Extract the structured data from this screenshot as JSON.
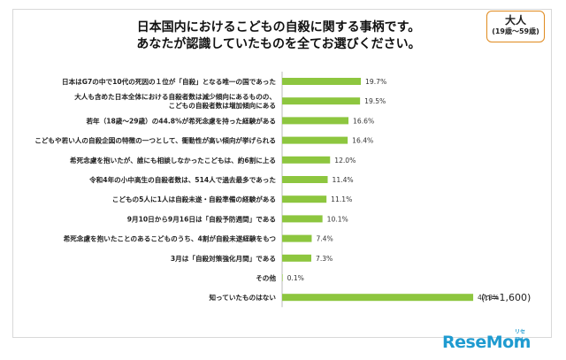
{
  "title": {
    "line1": "日本国内におけるこどもの自殺に関する事柄です。",
    "line2": "あなたが認識していたものを全てお選びください。"
  },
  "badge": {
    "label": "大人",
    "sub": "(19歳～59歳)"
  },
  "note": "(n=1,600)",
  "logo": {
    "text": "ReseMom",
    "small": "リセマム"
  },
  "colors": {
    "bar": "#8dc63f",
    "badge_border": "#e08a1e",
    "logo": "#1f9bd0"
  },
  "chart_data": {
    "type": "bar",
    "orientation": "horizontal",
    "unit": "%",
    "categories": [
      [
        "日本はG7の中で10代の死因の１位が「自殺」となる唯一の国であった"
      ],
      [
        "大人も含めた日本全体における自殺者数は減少傾向にあるものの、",
        "こどもの自殺者数は増加傾向にある"
      ],
      [
        "若年（18歳～29歳）の44.8%が希死念慮を持った経験がある"
      ],
      [
        "こどもや若い人の自殺企図の特徴の一つとして、衝動性が高い傾向が挙げられる"
      ],
      [
        "希死念慮を抱いたが、誰にも相談しなかったこどもは、約6割に上る"
      ],
      [
        "令和4年の小中高生の自殺者数は、514人で過去最多であった"
      ],
      [
        "こどもの5人に1人は自殺未遂・自殺準備の経験がある"
      ],
      [
        "9月10日から9月16日は「自殺予防週間」である"
      ],
      [
        "希死念慮を抱いたことのあるこどものうち、4割が自殺未遂経験をもつ"
      ],
      [
        "3月は「自殺対策強化月間」である"
      ],
      [
        "その他"
      ],
      [
        "知っていたものはない"
      ]
    ],
    "values": [
      19.7,
      19.5,
      16.6,
      16.4,
      12.0,
      11.4,
      11.1,
      10.1,
      7.4,
      7.3,
      0.1,
      47.8
    ],
    "value_labels": [
      "19.7%",
      "19.5%",
      "16.6%",
      "16.4%",
      "12.0%",
      "11.4%",
      "11.1%",
      "10.1%",
      "7.4%",
      "7.3%",
      "0.1%",
      "47.8%"
    ],
    "xlim": [
      0,
      60
    ],
    "grid": false,
    "legend": "none"
  }
}
